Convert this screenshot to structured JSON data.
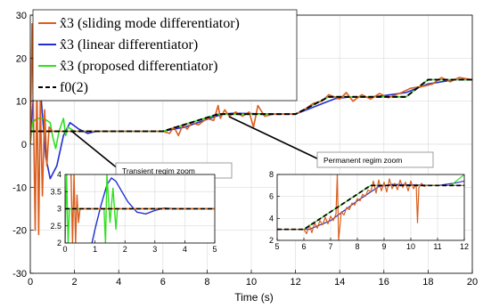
{
  "chart_data": [
    {
      "id": "main",
      "type": "line",
      "xlabel": "Time (s)",
      "ylabel": "",
      "xlim": [
        0,
        20
      ],
      "ylim": [
        -30,
        30
      ],
      "xticks": [
        0,
        2,
        4,
        6,
        8,
        10,
        12,
        14,
        16,
        18,
        20
      ],
      "yticks": [
        -30,
        -20,
        -10,
        0,
        10,
        20,
        30
      ],
      "grid": true,
      "legend_position": "top-left",
      "legend": [
        {
          "label": "x̂3 (sliding mode differentiator)",
          "color": "#d95f1e",
          "dash": "solid"
        },
        {
          "label": "x̂3 (linear differentiator)",
          "color": "#1f2fd1",
          "dash": "solid"
        },
        {
          "label": "x̂3 (proposed differentiator)",
          "color": "#2fe01f",
          "dash": "solid"
        },
        {
          "label": "f0(2)",
          "color": "#000000",
          "dash": "dashed"
        }
      ],
      "series": [
        {
          "name": "reference",
          "color": "#000000",
          "x": [
            0,
            6,
            8.5,
            9,
            11,
            12,
            13.5,
            14.5,
            15.5,
            17,
            18,
            19,
            20
          ],
          "y": [
            3,
            3,
            7,
            7,
            7,
            7,
            11,
            11,
            11,
            11,
            15,
            15,
            15
          ]
        },
        {
          "name": "linear",
          "color": "#1f2fd1",
          "x": [
            0,
            0.15,
            0.3,
            0.5,
            0.7,
            0.9,
            1.2,
            1.5,
            1.8,
            2.2,
            2.6,
            3.0,
            4.0,
            6.0,
            7.0,
            8.0,
            8.7,
            9.2,
            11.0,
            12.0,
            13.0,
            13.8,
            14.5,
            15.5,
            16.0,
            17.0,
            18.0,
            19.2,
            20.0
          ],
          "y": [
            0,
            12,
            14,
            10,
            -3,
            -8,
            -5,
            2,
            5,
            3.5,
            2.5,
            3,
            3,
            3,
            4,
            5.8,
            7,
            7.2,
            7,
            7,
            9,
            10.6,
            11,
            11,
            11.3,
            12,
            14,
            15,
            15
          ]
        },
        {
          "name": "proposed",
          "color": "#2fe01f",
          "x": [
            0,
            0.1,
            0.3,
            0.6,
            0.9,
            1.0,
            1.15,
            1.3,
            1.5,
            1.6,
            1.7,
            2.0,
            6,
            8.5,
            9,
            12,
            13.5,
            14.5,
            15.5,
            17,
            18,
            20
          ],
          "y": [
            0,
            5,
            6,
            6,
            5,
            2,
            -1,
            3,
            6,
            2,
            4,
            3,
            3,
            7,
            7,
            7,
            11,
            11,
            11,
            11,
            15,
            15
          ]
        },
        {
          "name": "sliding",
          "color": "#d95f1e",
          "x": [
            0,
            0.08,
            0.15,
            0.22,
            0.3,
            0.38,
            0.45,
            0.55,
            0.65,
            0.75,
            0.85,
            1.0,
            1.2,
            1.5,
            2.0,
            6,
            6.3,
            6.5,
            6.7,
            6.9,
            7.1,
            7.3,
            7.6,
            8.0,
            8.3,
            8.5,
            8.6,
            8.8,
            9.0,
            9.3,
            9.6,
            9.9,
            10.1,
            10.3,
            10.6,
            11,
            12,
            12.4,
            12.8,
            13.2,
            13.5,
            14,
            14.3,
            14.6,
            15,
            15.4,
            15.8,
            16.2,
            16.8,
            17.2,
            17.8,
            18.2,
            18.6,
            19.0,
            19.4,
            20
          ],
          "y": [
            0,
            28,
            5,
            -20,
            15,
            -21,
            10,
            -12,
            8,
            -5,
            4,
            3,
            3,
            3,
            3,
            3,
            2.5,
            4,
            2,
            4.5,
            3.5,
            5,
            4.5,
            6,
            5.5,
            9,
            6,
            8,
            6.5,
            7.5,
            6.5,
            7.5,
            4,
            9,
            6.5,
            7,
            7,
            8,
            9.5,
            10,
            11.5,
            10.5,
            12,
            10,
            11.5,
            10.5,
            11.8,
            10.8,
            12,
            13,
            13.5,
            14,
            15.5,
            14.5,
            15.5,
            15
          ]
        }
      ]
    },
    {
      "id": "inset-transient",
      "type": "line",
      "title": "Transient regim zoom",
      "xlim": [
        0,
        5
      ],
      "ylim": [
        2,
        4
      ],
      "xticks": [
        0,
        1,
        2,
        3,
        4,
        5
      ],
      "yticks": [
        2,
        2.5,
        3,
        3.5,
        4
      ],
      "grid": true,
      "series": [
        {
          "name": "reference",
          "color": "#000000",
          "x": [
            0,
            5
          ],
          "y": [
            3,
            3
          ]
        },
        {
          "name": "linear",
          "color": "#1f2fd1",
          "x": [
            0.9,
            1.0,
            1.2,
            1.4,
            1.55,
            1.7,
            1.9,
            2.1,
            2.4,
            2.7,
            3.0,
            3.3,
            3.7,
            4.2,
            5.0
          ],
          "y": [
            2.0,
            2.4,
            3.1,
            3.7,
            3.9,
            3.8,
            3.5,
            3.2,
            2.9,
            2.85,
            2.95,
            3.02,
            3.0,
            3.0,
            3.0
          ]
        },
        {
          "name": "proposed",
          "color": "#2fe01f",
          "x": [
            0,
            0.05,
            0.1,
            0.15,
            1.3,
            1.35,
            1.4,
            1.5,
            1.6,
            1.7,
            1.75,
            2.0,
            5.0
          ],
          "y": [
            2.0,
            4.0,
            2.0,
            3.0,
            3.0,
            2.0,
            4.0,
            2.6,
            3.6,
            2.4,
            3.0,
            3.0,
            3.0
          ]
        },
        {
          "name": "sliding",
          "color": "#d95f1e",
          "x": [
            0.2,
            0.25,
            0.3,
            0.35,
            0.4,
            0.45,
            0.5,
            0.6,
            5.0
          ],
          "y": [
            4.0,
            2.0,
            4.0,
            2.0,
            3.4,
            2.6,
            3.0,
            3.0,
            3.0
          ]
        }
      ]
    },
    {
      "id": "inset-permanent",
      "type": "line",
      "title": "Permanent regim zoom",
      "xlim": [
        5,
        12
      ],
      "ylim": [
        2,
        8
      ],
      "xticks": [
        5,
        6,
        7,
        8,
        9,
        10,
        11,
        12
      ],
      "yticks": [
        2,
        4,
        6,
        8
      ],
      "grid": true,
      "series": [
        {
          "name": "reference",
          "color": "#000000",
          "x": [
            5,
            6,
            8.5,
            12
          ],
          "y": [
            3,
            3,
            7,
            7
          ]
        },
        {
          "name": "linear",
          "color": "#1f2fd1",
          "x": [
            5,
            6.2,
            7.0,
            8.0,
            8.8,
            9.3,
            11.0,
            11.6,
            12.0
          ],
          "y": [
            3,
            3,
            3.8,
            5.6,
            6.9,
            7.1,
            7,
            7.2,
            7.4
          ]
        },
        {
          "name": "proposed",
          "color": "#2fe01f",
          "x": [
            5,
            6,
            8.5,
            11.5,
            12.0
          ],
          "y": [
            3,
            3,
            7,
            7,
            8
          ]
        },
        {
          "name": "sliding",
          "color": "#d95f1e",
          "x": [
            5,
            6.0,
            6.1,
            6.2,
            6.3,
            6.4,
            6.5,
            6.6,
            6.7,
            6.8,
            6.9,
            7.0,
            7.1,
            7.2,
            7.25,
            7.3,
            7.4,
            7.5,
            7.6,
            7.7,
            7.8,
            7.9,
            8.0,
            8.1,
            8.2,
            8.3,
            8.4,
            8.5,
            8.6,
            8.7,
            8.8,
            8.9,
            9.0,
            9.1,
            9.2,
            9.3,
            9.4,
            9.5,
            9.6,
            9.7,
            9.8,
            9.9,
            10.0,
            10.1,
            10.2,
            10.25,
            10.3,
            10.4,
            10.5,
            10.6,
            11.0,
            11.5,
            12.0
          ],
          "y": [
            3,
            3,
            2.6,
            3.4,
            2.7,
            3.6,
            3.1,
            3.8,
            3.4,
            4.1,
            3.5,
            4.2,
            3.8,
            4.4,
            8.0,
            2.0,
            4.6,
            4.3,
            5.0,
            4.8,
            5.4,
            5.2,
            5.8,
            5.6,
            6.2,
            6.0,
            6.6,
            6.4,
            7.4,
            6.3,
            7.5,
            6.5,
            7.3,
            6.4,
            7.6,
            6.7,
            7.2,
            6.6,
            7.5,
            6.8,
            7.3,
            6.5,
            7.4,
            6.7,
            7.1,
            3.6,
            6.8,
            7.2,
            6.9,
            7.0,
            7.0,
            7.0,
            7.0
          ]
        }
      ]
    }
  ]
}
